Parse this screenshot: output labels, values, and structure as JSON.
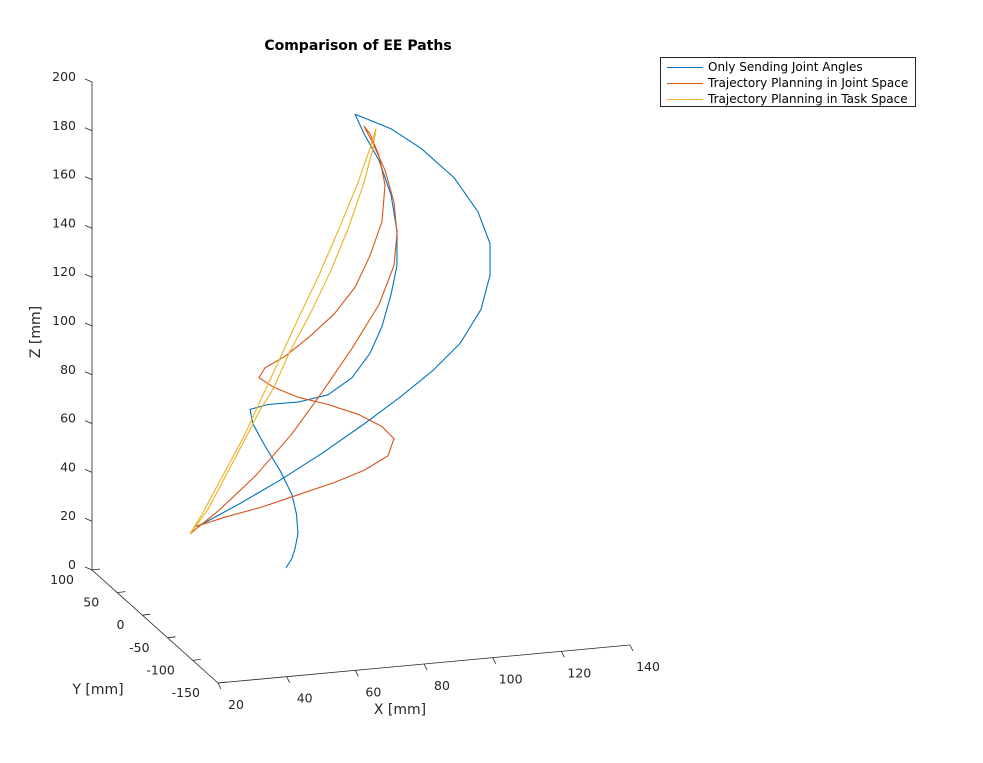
{
  "chart_data": {
    "type": "line",
    "title": "Comparison of EE Paths",
    "xlabel": "X [mm]",
    "ylabel": "Y [mm]",
    "zlabel": "Z [mm]",
    "xlim": [
      20,
      140
    ],
    "ylim": [
      -150,
      100
    ],
    "zlim": [
      0,
      200
    ],
    "x_ticks": [
      "20",
      "40",
      "60",
      "80",
      "100",
      "120",
      "140"
    ],
    "y_ticks": [
      "100",
      "50",
      "0",
      "-50",
      "-100",
      "-150"
    ],
    "z_ticks": [
      "0",
      "20",
      "40",
      "60",
      "80",
      "100",
      "120",
      "140",
      "160",
      "180",
      "200"
    ],
    "legend_position": "top-right",
    "grid": false,
    "series": [
      {
        "name": "Only Sending Joint Angles",
        "color": "#0072BD",
        "points": [
          {
            "x": 52,
            "z": 0
          },
          {
            "x": 54,
            "z": 4
          },
          {
            "x": 55,
            "z": 8
          },
          {
            "x": 56,
            "z": 14
          },
          {
            "x": 55.5,
            "z": 22
          },
          {
            "x": 54,
            "z": 30
          },
          {
            "x": 50,
            "z": 40
          },
          {
            "x": 45,
            "z": 50
          },
          {
            "x": 41,
            "z": 59
          },
          {
            "x": 40,
            "z": 65
          },
          {
            "x": 46,
            "z": 67
          },
          {
            "x": 56,
            "z": 68
          },
          {
            "x": 66,
            "z": 71
          },
          {
            "x": 74,
            "z": 78
          },
          {
            "x": 80,
            "z": 88
          },
          {
            "x": 84,
            "z": 99
          },
          {
            "x": 87,
            "z": 112
          },
          {
            "x": 89,
            "z": 124
          },
          {
            "x": 89,
            "z": 138
          },
          {
            "x": 87,
            "z": 153
          },
          {
            "x": 83,
            "z": 167
          },
          {
            "x": 78,
            "z": 178
          },
          {
            "x": 75,
            "z": 186
          },
          {
            "x": 79,
            "z": 184
          },
          {
            "x": 87,
            "z": 180
          },
          {
            "x": 97,
            "z": 172
          },
          {
            "x": 108,
            "z": 160
          },
          {
            "x": 116,
            "z": 146
          },
          {
            "x": 120,
            "z": 133
          },
          {
            "x": 120,
            "z": 120
          },
          {
            "x": 117,
            "z": 106
          },
          {
            "x": 110,
            "z": 92
          },
          {
            "x": 101,
            "z": 81
          },
          {
            "x": 90,
            "z": 70
          },
          {
            "x": 78,
            "z": 59
          },
          {
            "x": 64,
            "z": 47
          },
          {
            "x": 50,
            "z": 36
          },
          {
            "x": 36,
            "z": 26
          },
          {
            "x": 24,
            "z": 18
          },
          {
            "x": 22,
            "z": 17
          }
        ]
      },
      {
        "name": "Trajectory Planning in Joint Space",
        "color": "#D95319",
        "points": [
          {
            "x": 22,
            "z": 17
          },
          {
            "x": 32,
            "z": 21
          },
          {
            "x": 44,
            "z": 25
          },
          {
            "x": 56,
            "z": 30
          },
          {
            "x": 68,
            "z": 35
          },
          {
            "x": 78,
            "z": 40
          },
          {
            "x": 86,
            "z": 46
          },
          {
            "x": 88,
            "z": 53
          },
          {
            "x": 84,
            "z": 58
          },
          {
            "x": 76,
            "z": 63
          },
          {
            "x": 66,
            "z": 67
          },
          {
            "x": 56,
            "z": 70
          },
          {
            "x": 48,
            "z": 74
          },
          {
            "x": 43,
            "z": 78
          },
          {
            "x": 45,
            "z": 82
          },
          {
            "x": 52,
            "z": 87
          },
          {
            "x": 60,
            "z": 95
          },
          {
            "x": 68,
            "z": 104
          },
          {
            "x": 75,
            "z": 115
          },
          {
            "x": 80,
            "z": 128
          },
          {
            "x": 84,
            "z": 142
          },
          {
            "x": 85,
            "z": 157
          },
          {
            "x": 83,
            "z": 169
          },
          {
            "x": 80,
            "z": 178
          },
          {
            "x": 78,
            "z": 181
          },
          {
            "x": 81,
            "z": 174
          },
          {
            "x": 85,
            "z": 163
          },
          {
            "x": 88,
            "z": 150
          },
          {
            "x": 89,
            "z": 137
          },
          {
            "x": 88,
            "z": 124
          },
          {
            "x": 83,
            "z": 108
          },
          {
            "x": 74,
            "z": 90
          },
          {
            "x": 64,
            "z": 72
          },
          {
            "x": 54,
            "z": 55
          },
          {
            "x": 42,
            "z": 38
          },
          {
            "x": 30,
            "z": 24
          },
          {
            "x": 20,
            "z": 14
          }
        ]
      },
      {
        "name": "Trajectory Planning in Task Space",
        "color": "#EDB120",
        "points": [
          {
            "x": 20,
            "z": 14
          },
          {
            "x": 26,
            "z": 24
          },
          {
            "x": 32,
            "z": 38
          },
          {
            "x": 38,
            "z": 52
          },
          {
            "x": 43,
            "z": 64
          },
          {
            "x": 48,
            "z": 74
          },
          {
            "x": 53,
            "z": 88
          },
          {
            "x": 60,
            "z": 104
          },
          {
            "x": 67,
            "z": 122
          },
          {
            "x": 73,
            "z": 140
          },
          {
            "x": 78,
            "z": 158
          },
          {
            "x": 81,
            "z": 172
          },
          {
            "x": 82,
            "z": 180
          },
          {
            "x": 80,
            "z": 172
          },
          {
            "x": 76,
            "z": 158
          },
          {
            "x": 70,
            "z": 140
          },
          {
            "x": 63,
            "z": 120
          },
          {
            "x": 56,
            "z": 102
          },
          {
            "x": 50,
            "z": 86
          },
          {
            "x": 44,
            "z": 70
          },
          {
            "x": 38,
            "z": 54
          },
          {
            "x": 31,
            "z": 38
          },
          {
            "x": 24,
            "z": 22
          },
          {
            "x": 20,
            "z": 14
          }
        ]
      }
    ]
  }
}
